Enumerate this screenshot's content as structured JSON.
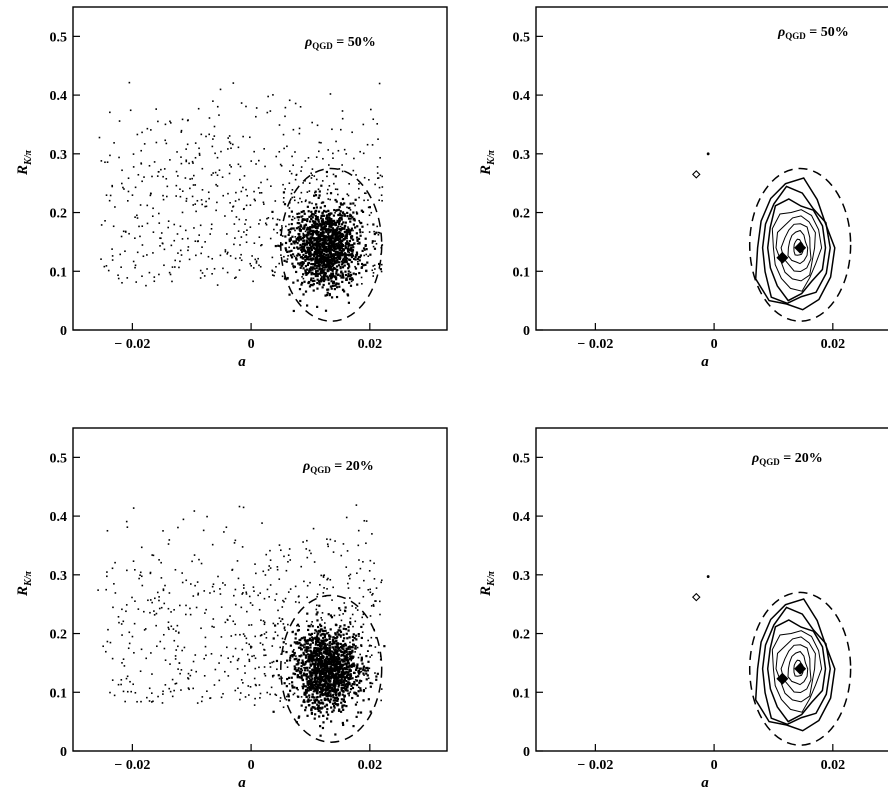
{
  "chart_data": [
    {
      "type": "scatter",
      "panel": "top-left",
      "xlabel": "a",
      "ylabel_main": "R",
      "ylabel_sub": "K/π",
      "xlim": [
        -0.03,
        0.033
      ],
      "ylim": [
        0,
        0.55
      ],
      "xticks": [
        -0.02,
        0,
        0.02
      ],
      "xtick_labels": [
        "− 0.02",
        "0",
        "0.02"
      ],
      "yticks": [
        0,
        0.1,
        0.2,
        0.3,
        0.4,
        0.5
      ],
      "ytick_labels": [
        "0",
        "0.1",
        "0.2",
        "0.3",
        "0.4",
        "0.5"
      ],
      "annotation": {
        "symbol": "ρ",
        "sub": "QGD",
        "text": " = 50%"
      },
      "cluster": {
        "center": [
          0.0125,
          0.145
        ],
        "spread": [
          0.0028,
          0.035
        ],
        "count": 1400
      },
      "background": {
        "xrange": [
          -0.026,
          0.022
        ],
        "yrange": [
          0.04,
          0.43
        ],
        "count": 650
      },
      "dashed_ellipse": {
        "center": [
          0.0135,
          0.145
        ],
        "radii": [
          0.0085,
          0.13
        ]
      }
    },
    {
      "type": "contour",
      "panel": "top-right",
      "xlabel": "a",
      "ylabel_main": "R",
      "ylabel_sub": "K/π",
      "xlim": [
        -0.03,
        0.033
      ],
      "ylim": [
        0,
        0.55
      ],
      "xticks": [
        -0.02,
        0,
        0.02
      ],
      "xtick_labels": [
        "− 0.02",
        "0",
        "0.02"
      ],
      "yticks": [
        0,
        0.1,
        0.2,
        0.3,
        0.4,
        0.5
      ],
      "ytick_labels": [
        "0",
        "0.1",
        "0.2",
        "0.3",
        "0.4",
        "0.5"
      ],
      "annotation": {
        "symbol": "ρ",
        "sub": "QGD",
        "text": " = 50%"
      },
      "contour_center": [
        0.0135,
        0.14
      ],
      "contour_radii": [
        0.0065,
        0.11
      ],
      "contour_levels": 8,
      "peaks": [
        [
          0.0115,
          0.123
        ],
        [
          0.0145,
          0.14
        ]
      ],
      "small_marker": [
        -0.003,
        0.265
      ],
      "small_dot": [
        -0.001,
        0.3
      ],
      "dashed_ellipse": {
        "center": [
          0.0145,
          0.145
        ],
        "radii": [
          0.0085,
          0.13
        ]
      }
    },
    {
      "type": "scatter",
      "panel": "bottom-left",
      "xlabel": "a",
      "ylabel_main": "R",
      "ylabel_sub": "K/π",
      "xlim": [
        -0.03,
        0.033
      ],
      "ylim": [
        0,
        0.55
      ],
      "xticks": [
        -0.02,
        0,
        0.02
      ],
      "xtick_labels": [
        "− 0.02",
        "0",
        "0.02"
      ],
      "yticks": [
        0,
        0.1,
        0.2,
        0.3,
        0.4,
        0.5
      ],
      "ytick_labels": [
        "0",
        "0.1",
        "0.2",
        "0.3",
        "0.4",
        "0.5"
      ],
      "annotation": {
        "symbol": "ρ",
        "sub": "QGD",
        "text": " = 20%"
      },
      "cluster": {
        "center": [
          0.0125,
          0.14
        ],
        "spread": [
          0.0028,
          0.035
        ],
        "count": 1400
      },
      "background": {
        "xrange": [
          -0.026,
          0.022
        ],
        "yrange": [
          0.04,
          0.43
        ],
        "count": 650
      },
      "dashed_ellipse": {
        "center": [
          0.0135,
          0.14
        ],
        "radii": [
          0.0085,
          0.125
        ]
      }
    },
    {
      "type": "contour",
      "panel": "bottom-right",
      "xlabel": "a",
      "ylabel_main": "R",
      "ylabel_sub": "K/π",
      "xlim": [
        -0.03,
        0.033
      ],
      "ylim": [
        0,
        0.55
      ],
      "xticks": [
        -0.02,
        0,
        0.02
      ],
      "xtick_labels": [
        "− 0.02",
        "0",
        "0.02"
      ],
      "yticks": [
        0,
        0.1,
        0.2,
        0.3,
        0.4,
        0.5
      ],
      "ytick_labels": [
        "0",
        "0.1",
        "0.2",
        "0.3",
        "0.4",
        "0.5"
      ],
      "annotation": {
        "symbol": "ρ",
        "sub": "QGD",
        "text": " = 20%"
      },
      "contour_center": [
        0.0135,
        0.14
      ],
      "contour_radii": [
        0.0065,
        0.11
      ],
      "contour_levels": 8,
      "peaks": [
        [
          0.0115,
          0.123
        ],
        [
          0.0145,
          0.14
        ]
      ],
      "small_marker": [
        -0.003,
        0.262
      ],
      "small_dot": [
        -0.001,
        0.297
      ],
      "dashed_ellipse": {
        "center": [
          0.0145,
          0.14
        ],
        "radii": [
          0.0085,
          0.13
        ]
      }
    }
  ]
}
